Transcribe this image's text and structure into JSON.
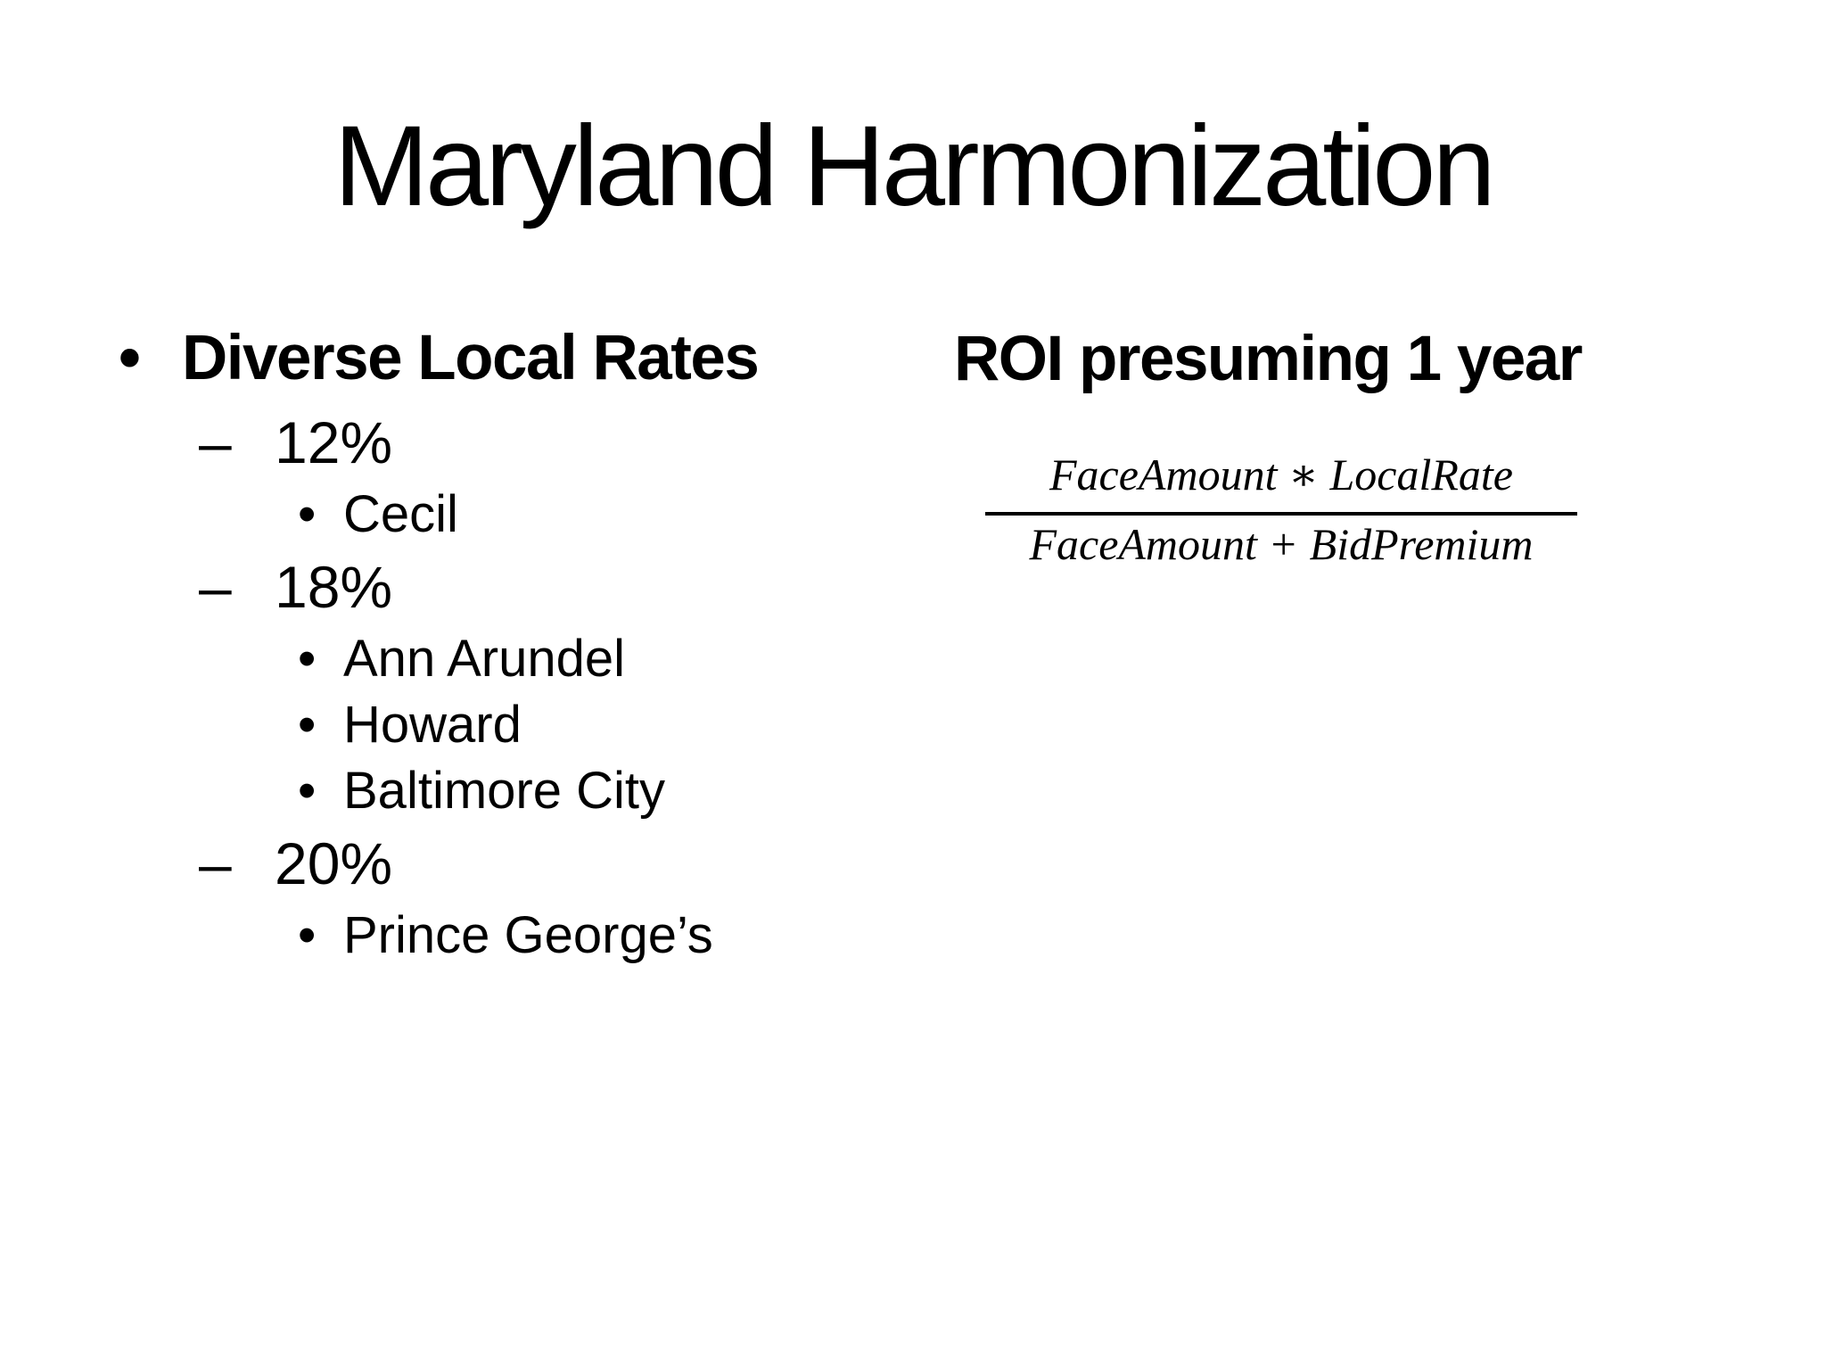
{
  "slide": {
    "title": "Maryland Harmonization",
    "left_column": {
      "heading": "Diverse Local Rates",
      "bullet_l1": "•",
      "bullet_l2": "–",
      "bullet_l3": "•",
      "groups": [
        {
          "rate": "12%",
          "jurisdictions": [
            "Cecil"
          ]
        },
        {
          "rate": "18%",
          "jurisdictions": [
            "Ann Arundel",
            "Howard",
            "Baltimore City"
          ]
        },
        {
          "rate": "20%",
          "jurisdictions": [
            "Prince George’s"
          ]
        }
      ]
    },
    "right_column": {
      "heading": "ROI presuming 1 year",
      "formula": {
        "numerator": "FaceAmount ∗ LocalRate",
        "denominator": "FaceAmount + BidPremium"
      }
    },
    "colors": {
      "background": "#ffffff",
      "text": "#000000"
    }
  }
}
